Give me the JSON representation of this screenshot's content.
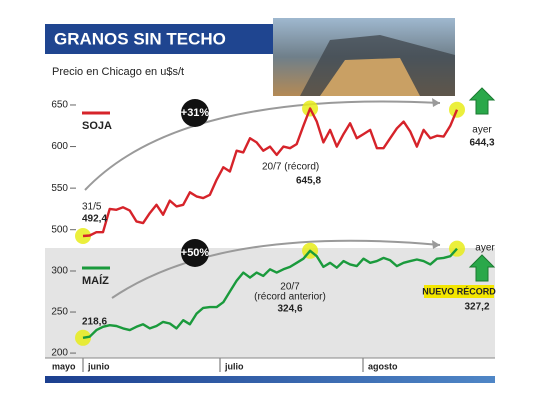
{
  "title": "GRANOS SIN TECHO",
  "subtitle": "Precio en Chicago en u$s/t",
  "chart_data": [
    {
      "type": "line",
      "series": [
        {
          "name": "SOJA",
          "color": "#d6232a",
          "values": [
            492.4,
            493,
            497,
            497,
            525,
            524,
            527,
            523,
            510,
            508,
            520,
            530,
            518,
            535,
            528,
            530,
            545,
            540,
            538,
            542,
            560,
            575,
            570,
            595,
            593,
            610,
            605,
            595,
            600,
            590,
            600,
            598,
            603,
            625,
            645.8,
            630,
            605,
            620,
            600,
            615,
            628,
            610,
            615,
            620,
            598,
            598,
            610,
            622,
            630,
            618,
            600,
            620,
            610,
            613,
            612,
            625,
            644.3
          ],
          "value_labels": [
            "492,4",
            null,
            null,
            null,
            null,
            null,
            null,
            null,
            null,
            null,
            null,
            null,
            null,
            null,
            null,
            null,
            null,
            null,
            null,
            null,
            null,
            null,
            null,
            null,
            null,
            null,
            null,
            null,
            null,
            null,
            null,
            null,
            null,
            null,
            "645,8",
            null,
            null,
            null,
            null,
            null,
            null,
            null,
            null,
            null,
            null,
            null,
            null,
            null,
            null,
            null,
            null,
            null,
            null,
            null,
            null,
            null,
            "644,3"
          ]
        }
      ],
      "ylim": [
        478,
        662
      ],
      "yticks": [
        500,
        550,
        600,
        650
      ],
      "change_label": "+31%",
      "notes": [
        "31/5",
        "20/7 (récord)",
        "ayer"
      ]
    },
    {
      "type": "line",
      "series": [
        {
          "name": "MAÍZ",
          "color": "#1a9a3c",
          "values": [
            218.6,
            220,
            228,
            232,
            234,
            233,
            230,
            228,
            232,
            235,
            230,
            233,
            238,
            236,
            230,
            240,
            235,
            248,
            255,
            256,
            256,
            262,
            275,
            288,
            298,
            292,
            298,
            294,
            302,
            298,
            302,
            305,
            310,
            315,
            324.6,
            318,
            305,
            310,
            304,
            312,
            308,
            306,
            315,
            310,
            312,
            316,
            313,
            306,
            310,
            312,
            314,
            312,
            308,
            315,
            316,
            318,
            327.2
          ],
          "value_labels": [
            "218,6",
            null,
            null,
            null,
            null,
            null,
            null,
            null,
            null,
            null,
            null,
            null,
            null,
            null,
            null,
            null,
            null,
            null,
            null,
            null,
            null,
            null,
            null,
            null,
            null,
            null,
            null,
            null,
            null,
            null,
            null,
            null,
            null,
            null,
            "324,6",
            null,
            null,
            null,
            null,
            null,
            null,
            null,
            null,
            null,
            null,
            null,
            null,
            null,
            null,
            null,
            null,
            null,
            null,
            null,
            null,
            null,
            "327,2"
          ]
        }
      ],
      "ylim": [
        194,
        328
      ],
      "yticks": [
        200,
        250,
        300
      ],
      "change_label": "+50%",
      "notes": [
        "20/7",
        "(récord anterior)",
        "ayer"
      ],
      "badge": "NUEVO RÉCORD",
      "x_labels": [
        "mayo",
        "junio",
        "julio",
        "agosto"
      ]
    }
  ]
}
